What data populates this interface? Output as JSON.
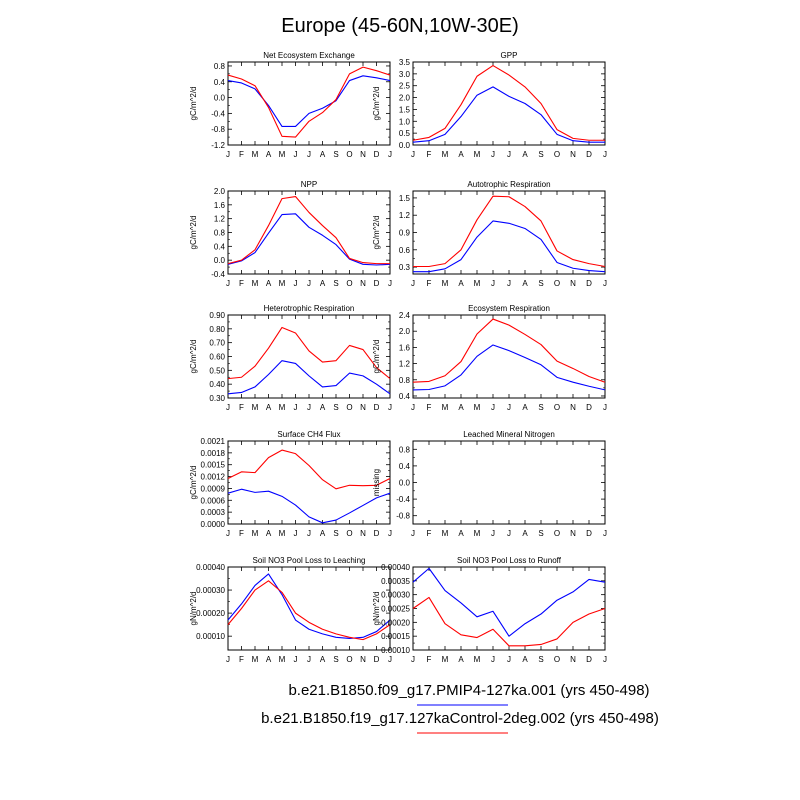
{
  "figure": {
    "title": "Europe (45-60N,10W-30E)",
    "legend": [
      {
        "label": "b.e21.B1850.f09_g17.PMIP4-127ka.001 (yrs 450-498)",
        "color": "#0000ff"
      },
      {
        "label": "b.e21.B1850.f19_g17.127kaControl-2deg.002 (yrs 450-498)",
        "color": "#ff0000"
      }
    ]
  },
  "chart_data": [
    {
      "type": "line",
      "title": "Net Ecosystem Exchange",
      "ylabel": "gC/m^2/d",
      "categories": [
        "J",
        "F",
        "M",
        "A",
        "M",
        "J",
        "J",
        "A",
        "S",
        "O",
        "N",
        "D",
        "J"
      ],
      "ylim": [
        -1.2,
        0.9
      ],
      "yticks": [
        -1.2,
        -0.8,
        -0.4,
        0.0,
        0.4,
        0.8
      ],
      "ytick_labels": [
        "-1.2",
        "-0.8",
        "-0.4",
        "0.0",
        "0.4",
        "0.8"
      ],
      "series": [
        {
          "color": "#0000ff",
          "values": [
            0.43,
            0.37,
            0.22,
            -0.2,
            -0.73,
            -0.73,
            -0.4,
            -0.27,
            -0.08,
            0.43,
            0.55,
            0.5,
            0.43
          ]
        },
        {
          "color": "#ff0000",
          "values": [
            0.57,
            0.47,
            0.3,
            -0.25,
            -0.98,
            -1.0,
            -0.6,
            -0.38,
            -0.05,
            0.6,
            0.77,
            0.68,
            0.57
          ]
        }
      ]
    },
    {
      "type": "line",
      "title": "GPP",
      "ylabel": "gC/m^2/d",
      "categories": [
        "J",
        "F",
        "M",
        "A",
        "M",
        "J",
        "J",
        "A",
        "S",
        "O",
        "N",
        "D",
        "J"
      ],
      "ylim": [
        0.0,
        3.5
      ],
      "yticks": [
        0.0,
        0.5,
        1.0,
        1.5,
        2.0,
        2.5,
        3.0,
        3.5
      ],
      "ytick_labels": [
        "0.0",
        "0.5",
        "1.0",
        "1.5",
        "2.0",
        "2.5",
        "3.0",
        "3.5"
      ],
      "series": [
        {
          "color": "#0000ff",
          "values": [
            0.12,
            0.18,
            0.45,
            1.2,
            2.1,
            2.45,
            2.05,
            1.75,
            1.28,
            0.45,
            0.18,
            0.12,
            0.12
          ]
        },
        {
          "color": "#ff0000",
          "values": [
            0.2,
            0.32,
            0.7,
            1.7,
            2.9,
            3.35,
            2.95,
            2.45,
            1.75,
            0.65,
            0.28,
            0.2,
            0.2
          ]
        }
      ]
    },
    {
      "type": "line",
      "title": "NPP",
      "ylabel": "gC/m^2/d",
      "categories": [
        "J",
        "F",
        "M",
        "A",
        "M",
        "J",
        "J",
        "A",
        "S",
        "O",
        "N",
        "D",
        "J"
      ],
      "ylim": [
        -0.4,
        2.0
      ],
      "yticks": [
        -0.4,
        0.0,
        0.4,
        0.8,
        1.2,
        1.6,
        2.0
      ],
      "ytick_labels": [
        "-0.4",
        "0.0",
        "0.4",
        "0.8",
        "1.2",
        "1.6",
        "2.0"
      ],
      "series": [
        {
          "color": "#0000ff",
          "values": [
            -0.12,
            -0.02,
            0.22,
            0.78,
            1.32,
            1.34,
            0.95,
            0.72,
            0.45,
            0.03,
            -0.12,
            -0.14,
            -0.12
          ]
        },
        {
          "color": "#ff0000",
          "values": [
            -0.1,
            0.0,
            0.3,
            1.0,
            1.78,
            1.84,
            1.38,
            1.0,
            0.65,
            0.05,
            -0.07,
            -0.1,
            -0.1
          ]
        }
      ]
    },
    {
      "type": "line",
      "title": "Autotrophic Respiration",
      "ylabel": "gC/m^2/d",
      "categories": [
        "J",
        "F",
        "M",
        "A",
        "M",
        "J",
        "J",
        "A",
        "S",
        "O",
        "N",
        "D",
        "J"
      ],
      "ylim": [
        0.18,
        1.62
      ],
      "yticks": [
        0.3,
        0.6,
        0.9,
        1.2,
        1.5
      ],
      "ytick_labels": [
        "0.3",
        "0.6",
        "0.9",
        "1.2",
        "1.5"
      ],
      "series": [
        {
          "color": "#0000ff",
          "values": [
            0.22,
            0.22,
            0.27,
            0.43,
            0.82,
            1.1,
            1.06,
            0.97,
            0.78,
            0.38,
            0.28,
            0.24,
            0.22
          ]
        },
        {
          "color": "#ff0000",
          "values": [
            0.31,
            0.31,
            0.36,
            0.6,
            1.12,
            1.53,
            1.52,
            1.35,
            1.1,
            0.58,
            0.43,
            0.36,
            0.31
          ]
        }
      ]
    },
    {
      "type": "line",
      "title": "Heterotrophic Respiration",
      "ylabel": "gC/m^2/d",
      "categories": [
        "J",
        "F",
        "M",
        "A",
        "M",
        "J",
        "J",
        "A",
        "S",
        "O",
        "N",
        "D",
        "J"
      ],
      "ylim": [
        0.3,
        0.9
      ],
      "yticks": [
        0.3,
        0.4,
        0.5,
        0.6,
        0.7,
        0.8,
        0.9
      ],
      "ytick_labels": [
        "0.30",
        "0.40",
        "0.50",
        "0.60",
        "0.70",
        "0.80",
        "0.90"
      ],
      "series": [
        {
          "color": "#0000ff",
          "values": [
            0.33,
            0.34,
            0.38,
            0.47,
            0.57,
            0.55,
            0.46,
            0.38,
            0.39,
            0.48,
            0.46,
            0.4,
            0.33
          ]
        },
        {
          "color": "#ff0000",
          "values": [
            0.44,
            0.45,
            0.53,
            0.66,
            0.81,
            0.77,
            0.64,
            0.56,
            0.57,
            0.68,
            0.65,
            0.52,
            0.44
          ]
        }
      ]
    },
    {
      "type": "line",
      "title": "Ecosystem Respiration",
      "ylabel": "gC/m^2/d",
      "categories": [
        "J",
        "F",
        "M",
        "A",
        "M",
        "J",
        "J",
        "A",
        "S",
        "O",
        "N",
        "D",
        "J"
      ],
      "ylim": [
        0.35,
        2.4
      ],
      "yticks": [
        0.4,
        0.8,
        1.2,
        1.6,
        2.0,
        2.4
      ],
      "ytick_labels": [
        "0.4",
        "0.8",
        "1.2",
        "1.6",
        "2.0",
        "2.4"
      ],
      "series": [
        {
          "color": "#0000ff",
          "values": [
            0.55,
            0.56,
            0.65,
            0.92,
            1.38,
            1.66,
            1.52,
            1.35,
            1.17,
            0.86,
            0.74,
            0.64,
            0.55
          ]
        },
        {
          "color": "#ff0000",
          "values": [
            0.74,
            0.76,
            0.9,
            1.25,
            1.93,
            2.3,
            2.15,
            1.92,
            1.67,
            1.26,
            1.08,
            0.88,
            0.74
          ]
        }
      ]
    },
    {
      "type": "line",
      "title": "Surface CH4 Flux",
      "ylabel": "gC/m^2/d",
      "categories": [
        "J",
        "F",
        "M",
        "A",
        "M",
        "J",
        "J",
        "A",
        "S",
        "O",
        "N",
        "D",
        "J"
      ],
      "ylim": [
        0.0,
        0.0021
      ],
      "yticks": [
        0.0,
        0.0003,
        0.0006,
        0.0009,
        0.0012,
        0.0015,
        0.0018,
        0.0021
      ],
      "ytick_labels": [
        "0.0000",
        "0.0003",
        "0.0006",
        "0.0009",
        "0.0012",
        "0.0015",
        "0.0018",
        "0.0021"
      ],
      "series": [
        {
          "color": "#0000ff",
          "values": [
            0.00078,
            0.00088,
            0.0008,
            0.00083,
            0.0007,
            0.00048,
            0.00018,
            3e-05,
            0.0001,
            0.00028,
            0.00047,
            0.00066,
            0.00078
          ]
        },
        {
          "color": "#ff0000",
          "values": [
            0.00115,
            0.00132,
            0.0013,
            0.00168,
            0.00187,
            0.00178,
            0.00148,
            0.00112,
            0.00089,
            0.00098,
            0.00097,
            0.00098,
            0.00115
          ]
        }
      ]
    },
    {
      "type": "line",
      "title": "Leached Mineral Nitrogen",
      "ylabel": "missing",
      "categories": [
        "J",
        "F",
        "M",
        "A",
        "M",
        "J",
        "J",
        "A",
        "S",
        "O",
        "N",
        "D",
        "J"
      ],
      "ylim": [
        -1.0,
        1.0
      ],
      "yticks": [
        -0.8,
        -0.4,
        0.0,
        0.4,
        0.8
      ],
      "ytick_labels": [
        "-0.8",
        "-0.4",
        "0.0",
        "0.4",
        "0.8"
      ],
      "series": []
    },
    {
      "type": "line",
      "title": "Soil NO3 Pool Loss to Leaching",
      "ylabel": "gN/m^2/d",
      "categories": [
        "J",
        "F",
        "M",
        "A",
        "M",
        "J",
        "J",
        "A",
        "S",
        "O",
        "N",
        "D",
        "J"
      ],
      "ylim": [
        4e-05,
        0.0004
      ],
      "yticks": [
        0.0001,
        0.0002,
        0.0003,
        0.0004
      ],
      "ytick_labels": [
        "0.00010",
        "0.00020",
        "0.00030",
        "0.00040"
      ],
      "series": [
        {
          "color": "#0000ff",
          "values": [
            0.00017,
            0.00024,
            0.00032,
            0.00037,
            0.00028,
            0.00017,
            0.00013,
            0.00011,
            9.5e-05,
            9e-05,
            9.5e-05,
            0.00012,
            0.00017
          ]
        },
        {
          "color": "#ff0000",
          "values": [
            0.00015,
            0.00022,
            0.0003,
            0.00034,
            0.00029,
            0.0002,
            0.00016,
            0.00013,
            0.00011,
            9.5e-05,
            8.5e-05,
            0.00011,
            0.00015
          ]
        }
      ]
    },
    {
      "type": "line",
      "title": "Soil NO3 Pool Loss to Runoff",
      "ylabel": "gN/m^2/d",
      "categories": [
        "J",
        "F",
        "M",
        "A",
        "M",
        "J",
        "J",
        "A",
        "S",
        "O",
        "N",
        "D",
        "J"
      ],
      "ylim": [
        0.0001,
        0.0004
      ],
      "yticks": [
        0.0001,
        0.00015,
        0.0002,
        0.00025,
        0.0003,
        0.00035,
        0.0004
      ],
      "ytick_labels": [
        "0.00010",
        "0.00015",
        "0.00020",
        "0.00025",
        "0.00030",
        "0.00035",
        "0.00040"
      ],
      "series": [
        {
          "color": "#0000ff",
          "values": [
            0.000345,
            0.000395,
            0.000315,
            0.00027,
            0.00022,
            0.00024,
            0.00015,
            0.000195,
            0.00023,
            0.00028,
            0.00031,
            0.000355,
            0.000345
          ]
        },
        {
          "color": "#ff0000",
          "values": [
            0.00025,
            0.00029,
            0.000195,
            0.000155,
            0.000145,
            0.000175,
            0.000115,
            0.000115,
            0.00012,
            0.00014,
            0.0002,
            0.00023,
            0.00025
          ]
        }
      ]
    }
  ]
}
